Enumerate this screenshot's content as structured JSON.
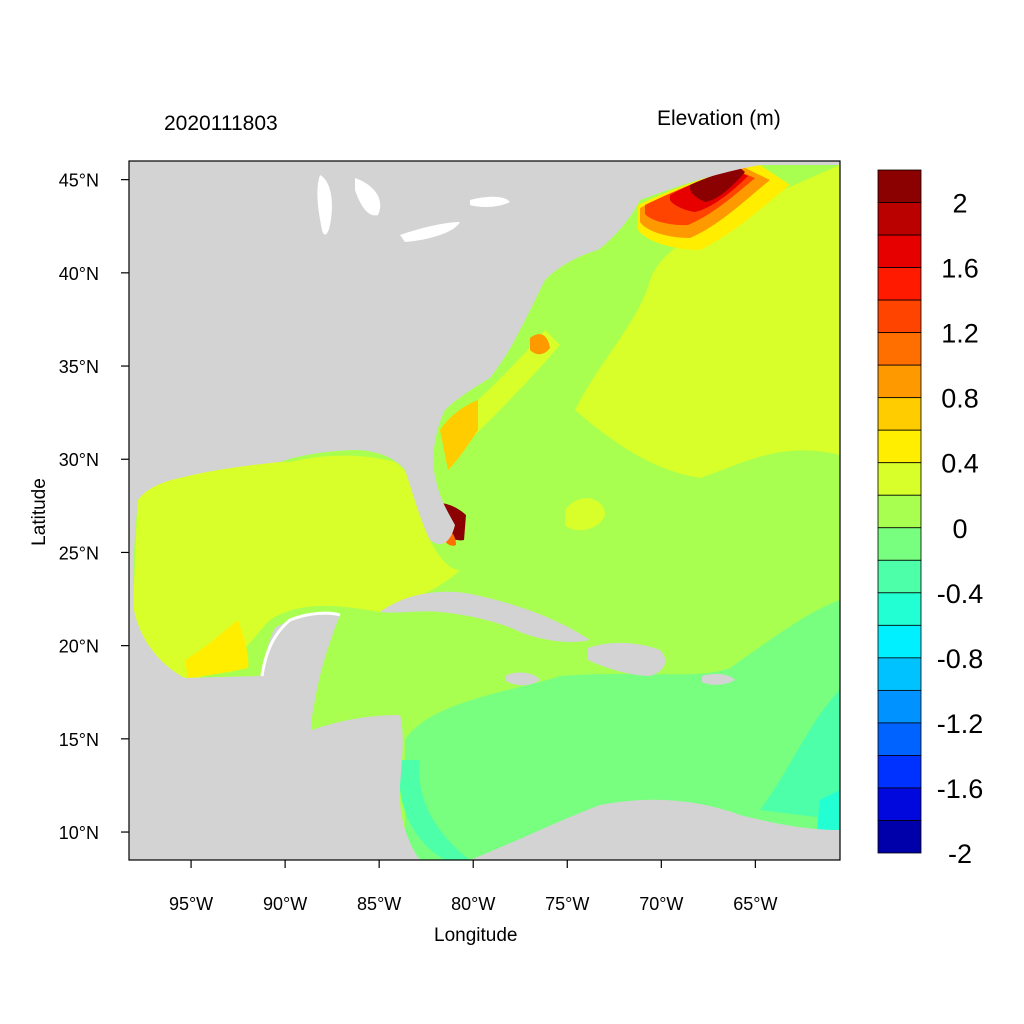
{
  "header": {
    "time_label": "2020111803",
    "units_label": "Elevation (m)"
  },
  "axes": {
    "x_title": "Longitude",
    "y_title": "Latitude",
    "lon_range": [
      -98.3,
      -60.5
    ],
    "lat_range": [
      8.5,
      46.0
    ],
    "x_ticks": [
      {
        "value": -95,
        "label": "95°W"
      },
      {
        "value": -90,
        "label": "90°W"
      },
      {
        "value": -85,
        "label": "85°W"
      },
      {
        "value": -80,
        "label": "80°W"
      },
      {
        "value": -75,
        "label": "75°W"
      },
      {
        "value": -70,
        "label": "70°W"
      },
      {
        "value": -65,
        "label": "65°W"
      }
    ],
    "y_ticks": [
      {
        "value": 45,
        "label": "45°N"
      },
      {
        "value": 40,
        "label": "40°N"
      },
      {
        "value": 35,
        "label": "35°N"
      },
      {
        "value": 30,
        "label": "30°N"
      },
      {
        "value": 25,
        "label": "25°N"
      },
      {
        "value": 20,
        "label": "20°N"
      },
      {
        "value": 15,
        "label": "15°N"
      },
      {
        "value": 10,
        "label": "10°N"
      }
    ]
  },
  "colorbar": {
    "colors": [
      "#8b0000",
      "#bb0000",
      "#e60000",
      "#ff1a00",
      "#ff4400",
      "#ff6f00",
      "#ff9900",
      "#ffcc00",
      "#ffee00",
      "#d8ff2a",
      "#a8ff50",
      "#78ff80",
      "#4dffa8",
      "#22ffd2",
      "#00f0ff",
      "#00c2ff",
      "#0092ff",
      "#0062ff",
      "#0032ff",
      "#0008dd",
      "#0000aa"
    ],
    "labels": [
      "2",
      "1.6",
      "1.2",
      "0.8",
      "0.4",
      "0",
      "-0.4",
      "-0.8",
      "-1.2",
      "-1.6",
      "-2"
    ]
  },
  "map": {
    "land_color": "#d3d3d3",
    "ocean_base_color": "#a8ff50",
    "regions": [
      {
        "name": "gulf-of-mexico",
        "level": 0.3
      },
      {
        "name": "western-atlantic",
        "level": 0.3
      },
      {
        "name": "gulf-of-maine-surge",
        "level": 2.0
      },
      {
        "name": "southwest-florida-coast",
        "level": 2.0
      },
      {
        "name": "caribbean-sea",
        "level": -0.1
      },
      {
        "name": "western-caribbean",
        "level": 0.1
      }
    ]
  }
}
